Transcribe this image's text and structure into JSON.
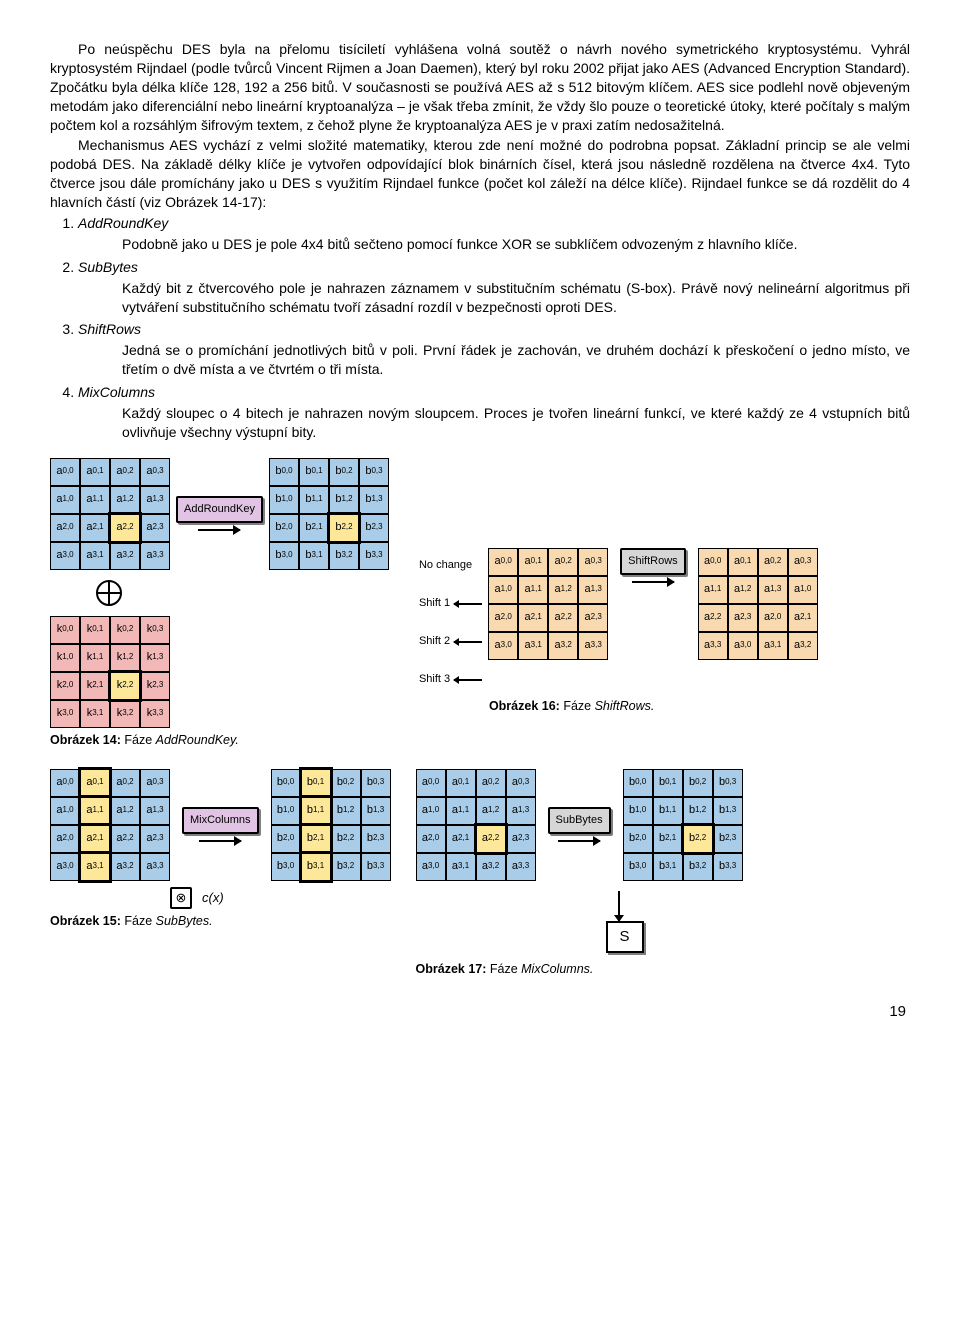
{
  "text": {
    "p1": "Po neúspěchu DES byla na přelomu tisíciletí vyhlášena volná soutěž o návrh nového symetrického kryptosystému. Vyhrál kryptosystém Rijndael (podle tvůrců Vincent Rijmen a Joan Daemen), který byl roku 2002 přijat jako AES (Advanced Encryption Standard). Zpočátku byla délka klíče 128, 192 a 256 bitů. V současnosti se používá AES až s 512 bitovým klíčem. AES sice podlehl nově objeveným metodám jako diferenciální nebo lineární kryptoanalýza – je však třeba zmínit, že vždy šlo pouze o teoretické útoky, které počítaly s malým počtem kol a rozsáhlým šifrovým textem, z čehož plyne že kryptoanalýza AES je v praxi zatím nedosažitelná.",
    "p2": "Mechanismus AES vychází z velmi složité matematiky, kterou zde není možné do podrobna popsat. Základní princip se ale velmi podobá DES. Na základě délky klíče je vytvořen odpovídající blok binárních čísel, která jsou následně rozdělena na čtverce 4x4. Tyto čtverce jsou dále promíchány jako u DES s využitím Rijndael funkce (počet kol záleží na délce klíče). Rijndael funkce se dá rozdělit do 4 hlavních částí (viz Obrázek 14-17):",
    "steps": [
      {
        "title": "AddRoundKey",
        "desc": "Podobně jako u DES je pole 4x4 bitů sečteno pomocí funkce XOR se subklíčem odvozeným z hlavního klíče."
      },
      {
        "title": "SubBytes",
        "desc": "Každý bit z čtvercového pole je nahrazen záznamem v substitučním schématu (S-box). Právě nový nelineární algoritmus při vytváření substitučního schématu tvoří zásadní rozdíl v bezpečnosti oproti DES."
      },
      {
        "title": "ShiftRows",
        "desc": "Jedná se o promíchání jednotlivých bitů v poli. První řádek je zachován, ve druhém dochází k přeskočení o jedno místo, ve třetím o dvě místa a ve čtvrtém o tři místa."
      },
      {
        "title": "MixColumns",
        "desc": "Každý sloupec o 4 bitech je nahrazen novým sloupcem. Proces je tvořen lineární funkcí, ve které každý ze 4 vstupních bitů ovlivňuje všechny výstupní bity."
      }
    ]
  },
  "ops": {
    "addroundkey": "AddRoundKey",
    "mixcolumns": "MixColumns",
    "shiftrows": "ShiftRows",
    "subbytes": "SubBytes",
    "cx": "c(x)",
    "S": "S"
  },
  "shift_labels": [
    "No change",
    "Shift 1",
    "Shift 2",
    "Shift 3"
  ],
  "shiftrows_output": [
    [
      "a0,0",
      "a0,1",
      "a0,2",
      "a0,3"
    ],
    [
      "a1,1",
      "a1,2",
      "a1,3",
      "a1,0"
    ],
    [
      "a2,2",
      "a2,3",
      "a2,0",
      "a2,1"
    ],
    [
      "a3,3",
      "a3,0",
      "a3,1",
      "a3,2"
    ]
  ],
  "captions": {
    "c14": {
      "label": "Obrázek 14:",
      "text": "Fáze ",
      "em": "AddRoundKey."
    },
    "c15": {
      "label": "Obrázek 15:",
      "text": "Fáze ",
      "em": "SubBytes."
    },
    "c16": {
      "label": "Obrázek 16:",
      "text": "Fáze ",
      "em": "ShiftRows."
    },
    "c17": {
      "label": "Obrázek 17:",
      "text": "Fáze ",
      "em": "MixColumns."
    }
  },
  "page_number": "19",
  "colors": {
    "blue": "#a9cde8",
    "pink": "#f2b7b7",
    "peach": "#f8d9b0",
    "highlight": "#fde89a",
    "op_purple": "#e1c3e4",
    "op_gray": "#d6d6d6"
  }
}
